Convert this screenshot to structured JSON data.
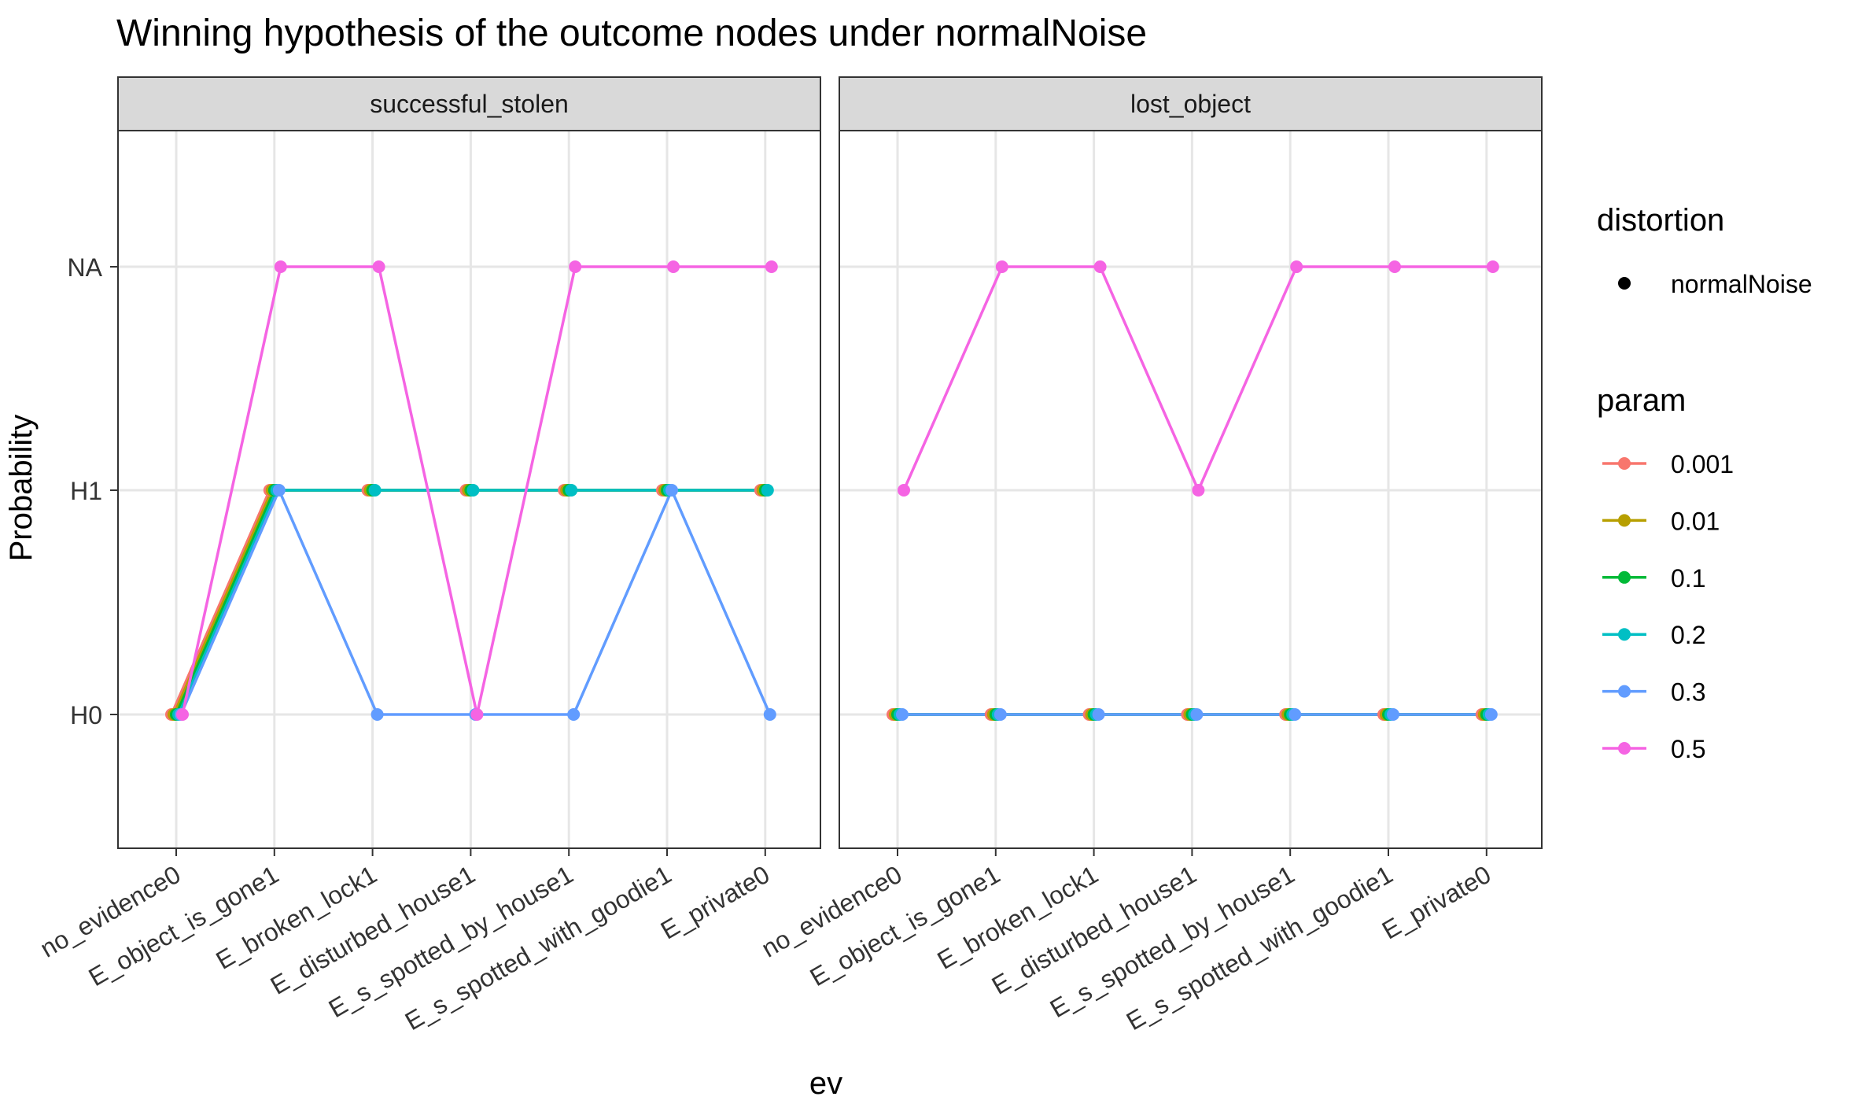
{
  "chart_data": {
    "type": "line",
    "title": "Winning hypothesis of the outcome nodes under normalNoise",
    "xlabel": "ev",
    "ylabel": "Probability",
    "categories": [
      "no_evidence0",
      "E_object_is_gone1",
      "E_broken_lock1",
      "E_disturbed_house1",
      "E_s_spotted_by_house1",
      "E_s_spotted_with_goodie1",
      "E_private0"
    ],
    "y_levels": [
      "H0",
      "H1",
      "NA"
    ],
    "grid": true,
    "legend": {
      "position": "right",
      "distortion": {
        "title": "distortion",
        "items": [
          "normalNoise"
        ]
      },
      "param": {
        "title": "param",
        "items": [
          "0.001",
          "0.01",
          "0.1",
          "0.2",
          "0.3",
          "0.5"
        ]
      }
    },
    "colors": {
      "0.001": "#F8766D",
      "0.01": "#B79F00",
      "0.1": "#00BA38",
      "0.2": "#00BFC4",
      "0.3": "#619CFF",
      "0.5": "#F564E3"
    },
    "panels": [
      {
        "label": "successful_stolen",
        "series": [
          {
            "param": "0.001",
            "values": [
              "H0",
              "H1",
              "H1",
              "H1",
              "H1",
              "H1",
              "H1"
            ]
          },
          {
            "param": "0.01",
            "values": [
              "H0",
              "H1",
              "H1",
              "H1",
              "H1",
              "H1",
              "H1"
            ]
          },
          {
            "param": "0.1",
            "values": [
              "H0",
              "H1",
              "H1",
              "H1",
              "H1",
              "H1",
              "H1"
            ]
          },
          {
            "param": "0.2",
            "values": [
              "H0",
              "H1",
              "H1",
              "H1",
              "H1",
              "H1",
              "H1"
            ]
          },
          {
            "param": "0.3",
            "values": [
              "H0",
              "H1",
              "H0",
              "H0",
              "H0",
              "H1",
              "H0"
            ]
          },
          {
            "param": "0.5",
            "values": [
              "H0",
              "NA",
              "NA",
              "H0",
              "NA",
              "NA",
              "NA"
            ]
          }
        ]
      },
      {
        "label": "lost_object",
        "series": [
          {
            "param": "0.001",
            "values": [
              "H0",
              "H0",
              "H0",
              "H0",
              "H0",
              "H0",
              "H0"
            ]
          },
          {
            "param": "0.01",
            "values": [
              "H0",
              "H0",
              "H0",
              "H0",
              "H0",
              "H0",
              "H0"
            ]
          },
          {
            "param": "0.1",
            "values": [
              "H0",
              "H0",
              "H0",
              "H0",
              "H0",
              "H0",
              "H0"
            ]
          },
          {
            "param": "0.2",
            "values": [
              "H0",
              "H0",
              "H0",
              "H0",
              "H0",
              "H0",
              "H0"
            ]
          },
          {
            "param": "0.3",
            "values": [
              "H0",
              "H0",
              "H0",
              "H0",
              "H0",
              "H0",
              "H0"
            ]
          },
          {
            "param": "0.5",
            "values": [
              "H1",
              "NA",
              "NA",
              "H1",
              "NA",
              "NA",
              "NA"
            ]
          }
        ]
      }
    ]
  }
}
